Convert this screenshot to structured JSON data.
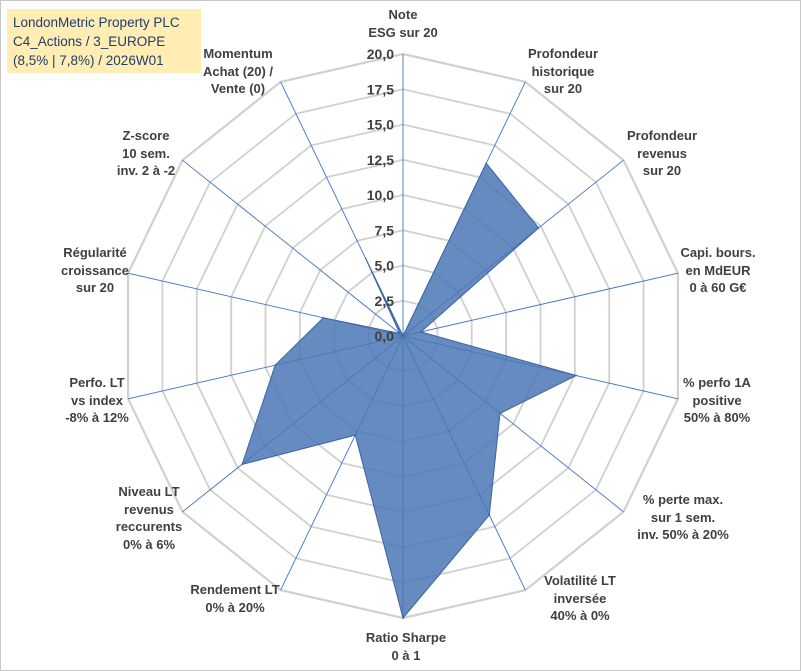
{
  "title": {
    "company": "LondonMetric Property PLC",
    "category": "C4_Actions / 3_EUROPE",
    "details": "(8,5% | 7,8%) / 2026W01"
  },
  "colors": {
    "fill": "#4a77b5",
    "stroke": "#3c64a0",
    "grid": "#d0d0d0",
    "spoke": "#4472c4",
    "title_bg": "#ffedb3"
  },
  "chart_data": {
    "type": "radar",
    "title": "LondonMetric Property PLC",
    "rmin": 0,
    "rmax": 20,
    "ticks": [
      "0,0",
      "2,5",
      "5,0",
      "7,5",
      "10,0",
      "12,5",
      "15,0",
      "17,5",
      "20,0"
    ],
    "tick_values": [
      0,
      2.5,
      5,
      7.5,
      10,
      12.5,
      15,
      17.5,
      20
    ],
    "axes": [
      "Note\nESG sur 20",
      "Profondeur\nhistorique\nsur 20",
      "Profondeur\nrevenus\nsur 20",
      "Capi. bours.\nen MdEUR\n0 à 60 G€",
      "% perfo 1A\npositive\n50% à 80%",
      "% perte max.\nsur 1 sem.\ninv. 50% à 20%",
      "Volatilité LT\ninversée\n40% à 0%",
      "Ratio Sharpe\n0 à 1",
      "Rendement LT\n0% à 20%",
      "Niveau LT\nrevenus\nreccurents\n0% à 6%",
      "Perfo. LT\nvs index\n-8% à 12%",
      "Régularité\ncroissance\nsur 20",
      "Z-score\n10 sem.\ninv. 2 à -2",
      "Momentum\nAchat (20) /\nVente (0)"
    ],
    "series": [
      {
        "name": "LondonMetric Property PLC",
        "values": [
          0,
          13.6,
          12.3,
          1.3,
          12.6,
          8.8,
          14.1,
          20,
          7.8,
          14.6,
          9.3,
          5.8,
          0.3,
          6.1
        ]
      }
    ]
  }
}
